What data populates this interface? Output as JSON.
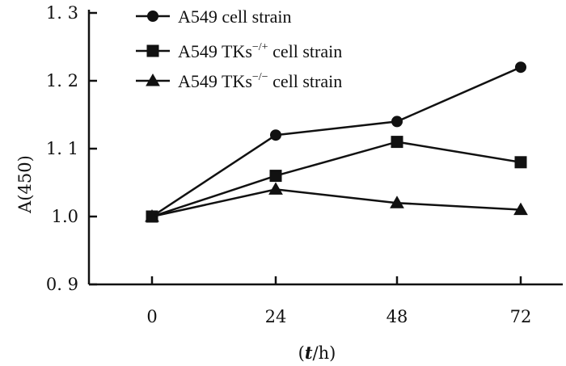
{
  "chart_data": {
    "type": "line",
    "x": [
      0,
      24,
      48,
      72
    ],
    "x_tick_labels": [
      "0",
      "24",
      "48",
      "72"
    ],
    "ylim": [
      0.9,
      1.3
    ],
    "y_ticks": [
      0.9,
      1.0,
      1.1,
      1.2,
      1.3
    ],
    "y_tick_labels": [
      "0. 9",
      "1.0",
      "1. 1",
      "1. 2",
      "1. 3"
    ],
    "ylabel": "A(450)",
    "xlabel_open": "(",
    "xlabel_var": "t",
    "xlabel_rest": "/h)",
    "grid": false,
    "legend_position": "top-left",
    "series": [
      {
        "name": "A549 cell strain",
        "name_base": "A549 cell strain",
        "name_sup": "",
        "name_tail": "",
        "marker": "circle",
        "values": [
          1.0,
          1.12,
          1.14,
          1.22
        ]
      },
      {
        "name": "A549 TKs−/+ cell strain",
        "name_base": "A549  TKs",
        "name_sup": "−/+",
        "name_tail": " cell strain",
        "marker": "square",
        "values": [
          1.0,
          1.06,
          1.11,
          1.08
        ]
      },
      {
        "name": "A549 TKs−/− cell strain",
        "name_base": "A549  TKs",
        "name_sup": "−/−",
        "name_tail": " cell strain",
        "marker": "triangle",
        "values": [
          1.0,
          1.04,
          1.02,
          1.01
        ]
      }
    ]
  }
}
